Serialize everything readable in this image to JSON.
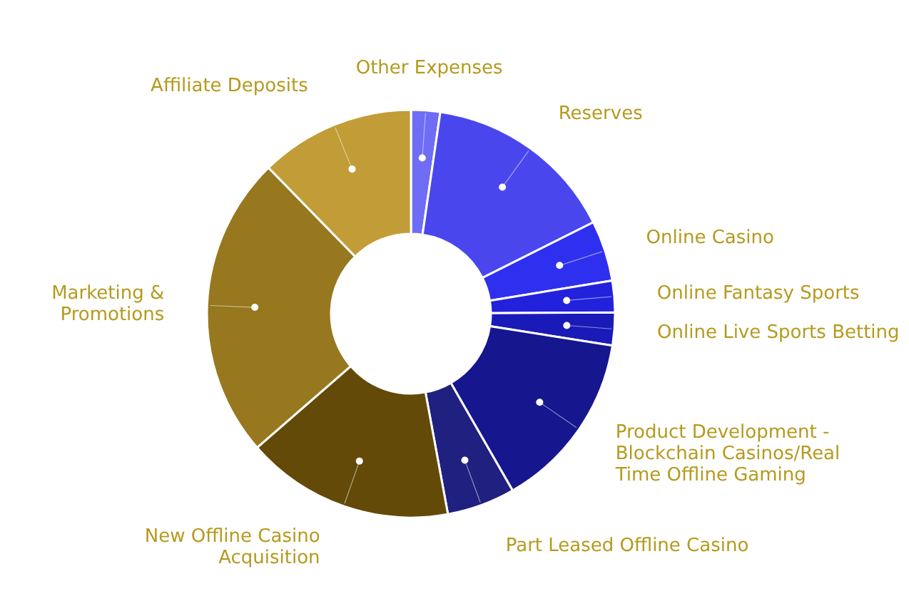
{
  "chart_data": {
    "type": "donut",
    "categories": [
      "Other Expenses",
      "Reserves",
      "Online Casino",
      "Online Fantasy Sports",
      "Online Live Sports Betting",
      "Product Development - Blockchain Casinos/Real Time Offline Gaming",
      "Part Leased Offline Casino",
      "New Offline Casino Acquisition",
      "Marketing & Promotions",
      "Affiliate Deposits"
    ],
    "values": [
      2.3,
      15.3,
      4.8,
      2.5,
      2.6,
      14.2,
      5.4,
      16.5,
      24.1,
      12.3
    ],
    "colors": [
      "#6f6cf6",
      "#4a46ee",
      "#2f2ff0",
      "#2222dc",
      "#1a1ab8",
      "#16168f",
      "#202080",
      "#634a08",
      "#97781f",
      "#c29c36"
    ]
  }
}
